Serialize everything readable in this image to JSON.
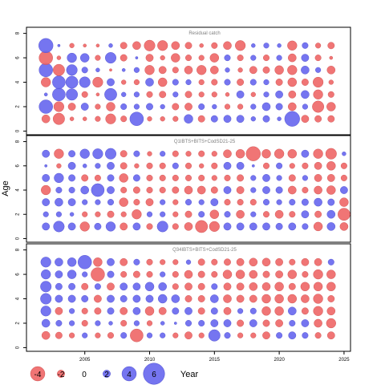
{
  "chart_data": [
    {
      "type": "scatter",
      "title": "Residual catch",
      "x_range": [
        2002,
        2023
      ],
      "y_ticks": [
        0,
        2,
        4,
        6,
        8
      ],
      "ages": [
        1,
        2,
        3,
        4,
        5,
        6,
        7
      ],
      "residuals": [
        [
          -2.2,
          3.8,
          0.8,
          -2.6,
          3.8,
          -3.8,
          4.0
        ],
        [
          -3.2,
          -2.8,
          3.6,
          3.6,
          -3.2,
          -1.0,
          0.6
        ],
        [
          -1.0,
          -2.0,
          3.2,
          3.4,
          3.0,
          2.6,
          -1.2
        ],
        [
          -1.0,
          2.0,
          -1.6,
          3.0,
          1.6,
          2.4,
          -0.8
        ],
        [
          -1.4,
          -1.4,
          -0.8,
          -2.8,
          1.0,
          -1.4,
          -0.8
        ],
        [
          -2.8,
          -2.4,
          3.4,
          2.0,
          -0.6,
          3.0,
          1.0
        ],
        [
          -1.6,
          1.6,
          1.2,
          -1.2,
          0.8,
          -1.8,
          -1.8
        ],
        [
          3.8,
          1.4,
          1.4,
          -1.4,
          1.4,
          0.6,
          -2.2
        ],
        [
          -1.2,
          1.8,
          -1.6,
          2.2,
          -2.6,
          -2.0,
          -3.0
        ],
        [
          -1.2,
          1.2,
          -1.8,
          -2.4,
          -2.0,
          -1.2,
          -2.8
        ],
        [
          -1.4,
          -1.8,
          1.4,
          1.6,
          -1.6,
          -2.4,
          -2.2
        ],
        [
          2.4,
          -2.0,
          -1.8,
          1.4,
          -2.2,
          -1.6,
          -1.8
        ],
        [
          -1.8,
          1.6,
          -1.4,
          -1.4,
          -2.6,
          -1.4,
          -1.0
        ],
        [
          1.8,
          1.2,
          -1.4,
          -1.6,
          -2.2,
          -2.4,
          -1.6
        ],
        [
          2.0,
          -1.4,
          -1.0,
          1.6,
          1.2,
          1.6,
          -2.2
        ],
        [
          2.0,
          -1.4,
          2.0,
          -1.8,
          -1.2,
          -1.6,
          -2.8
        ],
        [
          1.2,
          1.4,
          -1.2,
          1.6,
          -2.0,
          1.4,
          1.0
        ],
        [
          1.8,
          2.2,
          1.4,
          1.4,
          -1.8,
          -1.6,
          1.4
        ],
        [
          1.0,
          1.8,
          2.0,
          -1.8,
          -2.4,
          1.4,
          1.0
        ],
        [
          4.2,
          -2.2,
          -2.0,
          -2.4,
          -2.6,
          -2.2,
          -2.6
        ],
        [
          -2.0,
          1.4,
          2.2,
          -1.8,
          2.2,
          2.0,
          1.6
        ],
        [
          -1.8,
          -3.2,
          -2.6,
          -2.8,
          1.4,
          -1.6,
          -1.4
        ],
        [
          -1.8,
          -2.4,
          -1.6,
          -1.2,
          -2.2,
          -0.8,
          -1.8
        ]
      ]
    },
    {
      "type": "scatter",
      "title": "Q1IBTS+BITS+CodSD21-25",
      "x_range": [
        2002,
        2024
      ],
      "y_ticks": [
        0,
        2,
        4,
        6,
        8
      ],
      "ages": [
        1,
        2,
        3,
        4,
        5,
        6,
        7
      ],
      "residuals": [
        [
          2.0,
          1.4,
          2.0,
          -2.6,
          2.0,
          0.6,
          2.0
        ],
        [
          3.0,
          1.4,
          2.2,
          1.6,
          2.6,
          -1.2,
          -2.6
        ],
        [
          2.0,
          1.0,
          2.0,
          1.6,
          1.8,
          2.0,
          1.8
        ],
        [
          -2.6,
          -1.4,
          1.4,
          2.2,
          -1.8,
          1.0,
          2.6
        ],
        [
          1.8,
          -1.4,
          1.4,
          3.6,
          -1.6,
          1.4,
          2.8
        ],
        [
          2.6,
          -1.8,
          1.6,
          2.0,
          1.8,
          2.0,
          3.0
        ],
        [
          -2.0,
          -1.4,
          -2.4,
          -1.6,
          -2.4,
          -1.8,
          -1.8
        ],
        [
          2.0,
          -2.6,
          -1.6,
          -1.8,
          1.8,
          -1.2,
          1.6
        ],
        [
          -1.6,
          1.4,
          -2.0,
          -1.6,
          -1.6,
          -1.6,
          -1.2
        ],
        [
          3.0,
          1.4,
          1.4,
          -1.6,
          -1.6,
          -1.6,
          1.4
        ],
        [
          -1.6,
          -1.4,
          -1.4,
          -1.8,
          -1.6,
          1.6,
          -1.6
        ],
        [
          -2.2,
          -1.8,
          1.6,
          -2.2,
          -1.6,
          -1.6,
          -1.4
        ],
        [
          -3.4,
          1.6,
          1.4,
          -2.2,
          -1.6,
          -1.2,
          -1.6
        ],
        [
          -2.8,
          -2.4,
          2.0,
          -1.8,
          -1.4,
          -1.6,
          -1.4
        ],
        [
          2.0,
          1.6,
          -1.6,
          2.0,
          -1.6,
          2.0,
          -2.2
        ],
        [
          2.0,
          -2.2,
          -1.6,
          -2.0,
          -1.8,
          2.0,
          -2.4
        ],
        [
          2.0,
          1.4,
          -1.6,
          1.4,
          1.4,
          0.6,
          -4.0
        ],
        [
          2.0,
          -1.6,
          1.6,
          2.0,
          2.0,
          -1.6,
          -2.4
        ],
        [
          1.8,
          -2.2,
          1.4,
          1.8,
          1.4,
          1.6,
          -2.6
        ],
        [
          2.0,
          -1.6,
          1.6,
          -2.2,
          -1.8,
          -1.4,
          -2.4
        ],
        [
          1.6,
          2.0,
          1.8,
          -1.6,
          1.4,
          -1.6,
          2.0
        ],
        [
          -2.4,
          -1.8,
          2.2,
          -2.2,
          -2.0,
          -2.0,
          -2.6
        ],
        [
          2.2,
          2.2,
          1.8,
          -2.4,
          -2.0,
          -2.4,
          -3.0
        ],
        [
          -2.2,
          -3.4,
          -2.4,
          2.0,
          -1.6,
          -1.6,
          1.0
        ]
      ]
    },
    {
      "type": "scatter",
      "title": "Q34IBTS+BITS+CodSD21-25",
      "x_range": [
        2002,
        2023
      ],
      "y_ticks": [
        0,
        2,
        4,
        6,
        8
      ],
      "ages": [
        1,
        2,
        3,
        4,
        5,
        6,
        7
      ],
      "residuals": [
        [
          -2.2,
          2.2,
          2.8,
          3.0,
          3.0,
          2.6,
          2.8
        ],
        [
          -1.8,
          1.6,
          -2.0,
          2.0,
          1.8,
          2.0,
          2.2
        ],
        [
          -1.4,
          1.4,
          1.4,
          2.0,
          1.8,
          2.4,
          2.4
        ],
        [
          1.4,
          -1.6,
          -1.6,
          1.8,
          -1.8,
          1.4,
          3.8
        ],
        [
          -1.4,
          1.4,
          -1.8,
          -2.0,
          1.6,
          -3.8,
          -2.4
        ],
        [
          -1.6,
          1.0,
          1.8,
          2.0,
          -2.0,
          1.8,
          2.0
        ],
        [
          1.6,
          -1.6,
          -2.0,
          1.8,
          2.0,
          -1.6,
          -2.0
        ],
        [
          -3.6,
          1.4,
          2.0,
          2.0,
          2.0,
          -1.8,
          1.6
        ],
        [
          1.4,
          -1.4,
          -2.4,
          2.0,
          2.4,
          -1.6,
          -1.6
        ],
        [
          1.4,
          1.0,
          -2.0,
          2.4,
          2.2,
          1.4,
          -1.4
        ],
        [
          -1.4,
          0.6,
          1.8,
          2.2,
          -1.6,
          -1.6,
          -1.4
        ],
        [
          -2.0,
          1.6,
          2.0,
          -1.8,
          -2.0,
          -2.2,
          1.2
        ],
        [
          -1.4,
          1.6,
          -1.8,
          -1.8,
          -1.8,
          -1.8,
          -1.8
        ],
        [
          3.2,
          2.0,
          1.8,
          2.2,
          1.6,
          -1.6,
          -1.6
        ],
        [
          1.6,
          2.0,
          -2.0,
          -2.2,
          -2.0,
          -2.4,
          -1.8
        ],
        [
          -1.4,
          -1.8,
          1.4,
          -2.0,
          -2.0,
          -2.4,
          -2.0
        ],
        [
          -1.4,
          2.0,
          1.6,
          -2.0,
          -2.2,
          -2.2,
          -2.2
        ],
        [
          -2.0,
          -1.8,
          -2.4,
          -2.4,
          -2.2,
          -1.8,
          -2.2
        ],
        [
          1.6,
          -2.0,
          -2.4,
          -2.4,
          -2.4,
          -2.0,
          -2.0
        ],
        [
          2.0,
          1.6,
          2.2,
          -2.4,
          -1.8,
          -2.4,
          -1.6
        ],
        [
          1.6,
          2.0,
          -1.8,
          -2.2,
          -2.4,
          -1.6,
          -2.0
        ],
        [
          -1.6,
          -2.2,
          -2.6,
          -2.6,
          -2.4,
          -2.6,
          -2.0
        ],
        [
          -2.0,
          -2.6,
          -2.2,
          -1.8,
          -2.4,
          -2.4,
          1.6
        ]
      ]
    }
  ],
  "axes": {
    "ylabel": "Age",
    "xlabel_legend": "Year",
    "x_ticks": [
      2005,
      2010,
      2015,
      2020,
      2025
    ],
    "x_range": [
      2000.5,
      2025.5
    ]
  },
  "legend": {
    "values": [
      -4,
      -2,
      0,
      2,
      4,
      6
    ],
    "labels": [
      "-4",
      "-2",
      "0",
      "2",
      "4",
      "6"
    ],
    "label": "Year"
  },
  "colors": {
    "positive": "#6666ee",
    "negative": "#ee6666",
    "axis": "#000000",
    "panel_title": "#7f7f7f"
  }
}
